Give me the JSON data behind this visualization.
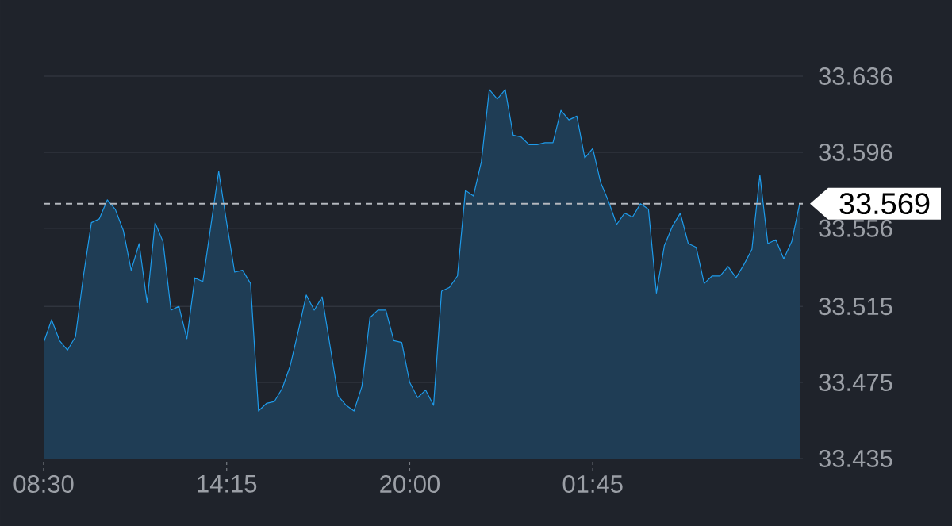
{
  "chart_data": {
    "type": "area",
    "color": "#1e9bea",
    "categories": [
      "08:30",
      null,
      null,
      null,
      null,
      null,
      null,
      null,
      null,
      null,
      null,
      null,
      null,
      null,
      null,
      null,
      null,
      null,
      null,
      null,
      null,
      null,
      null,
      "14:15",
      null,
      null,
      null,
      null,
      null,
      null,
      null,
      null,
      null,
      null,
      null,
      null,
      null,
      null,
      null,
      null,
      null,
      null,
      null,
      null,
      null,
      null,
      "20:00",
      null,
      null,
      null,
      null,
      null,
      null,
      null,
      null,
      null,
      null,
      null,
      null,
      null,
      null,
      null,
      null,
      null,
      null,
      null,
      null,
      null,
      null,
      "01:45",
      null,
      null,
      null,
      null,
      null,
      null,
      null,
      null,
      null,
      null,
      null,
      null,
      null,
      null,
      null,
      null,
      null,
      null,
      null,
      null,
      null,
      null,
      null,
      null,
      null,
      null
    ],
    "values": [
      33.496,
      33.508,
      33.497,
      33.492,
      33.499,
      33.531,
      33.559,
      33.561,
      33.571,
      33.566,
      33.555,
      33.534,
      33.548,
      33.517,
      33.559,
      33.549,
      33.513,
      33.515,
      33.498,
      33.53,
      33.528,
      33.557,
      33.586,
      33.559,
      33.533,
      33.534,
      33.527,
      33.46,
      33.464,
      33.465,
      33.472,
      33.484,
      33.502,
      33.521,
      33.513,
      33.52,
      33.494,
      33.468,
      33.463,
      33.46,
      33.473,
      33.509,
      33.513,
      33.513,
      33.497,
      33.496,
      33.475,
      33.467,
      33.471,
      33.463,
      33.523,
      33.525,
      33.531,
      33.576,
      33.573,
      33.591,
      33.629,
      33.624,
      33.629,
      33.605,
      33.604,
      33.6,
      33.6,
      33.601,
      33.601,
      33.618,
      33.613,
      33.615,
      33.593,
      33.598,
      33.58,
      33.57,
      33.558,
      33.564,
      33.562,
      33.569,
      33.566,
      33.522,
      33.547,
      33.557,
      33.564,
      33.548,
      33.546,
      33.527,
      33.531,
      33.531,
      33.536,
      33.53,
      33.537,
      33.545,
      33.584,
      33.548,
      33.55,
      33.54,
      33.549,
      33.569
    ],
    "ylim": [
      33.435,
      33.636
    ],
    "yticks": [
      33.435,
      33.475,
      33.515,
      33.556,
      33.596,
      33.636
    ],
    "grid": "y",
    "ref_lines": [
      {
        "axis": "y",
        "value": 33.569,
        "label": "33.569",
        "color": "#b4b8be",
        "line_style": "dashed"
      }
    ]
  }
}
